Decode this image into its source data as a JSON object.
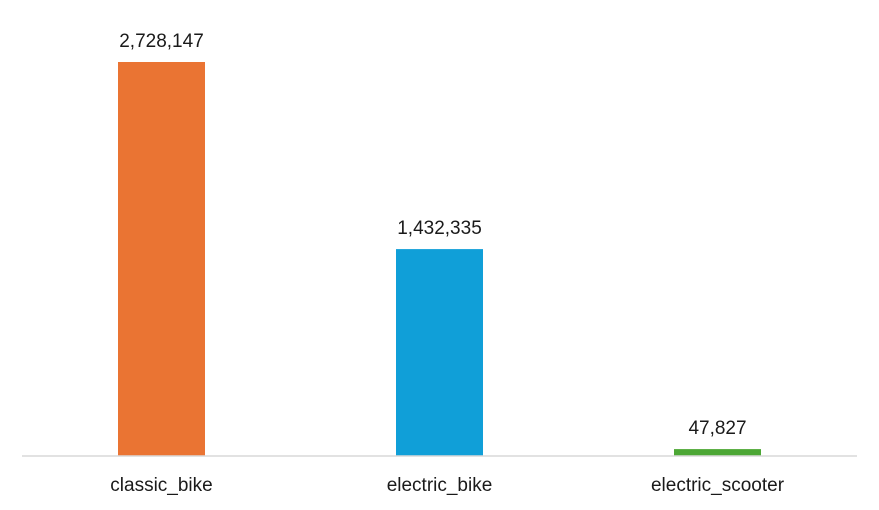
{
  "chart_data": {
    "type": "bar",
    "categories": [
      "classic_bike",
      "electric_bike",
      "electric_scooter"
    ],
    "values": [
      2728147,
      1432335,
      47827
    ],
    "data_labels": [
      "2,728,147",
      "1,432,335",
      "47,827"
    ],
    "colors": [
      "#ea7433",
      "#109fd8",
      "#4ca735"
    ],
    "axis_color": "#d9d9d9",
    "ylim": [
      0,
      2728147
    ],
    "grid": false,
    "legend": "none",
    "title": "",
    "xlabel": "",
    "ylabel": ""
  }
}
